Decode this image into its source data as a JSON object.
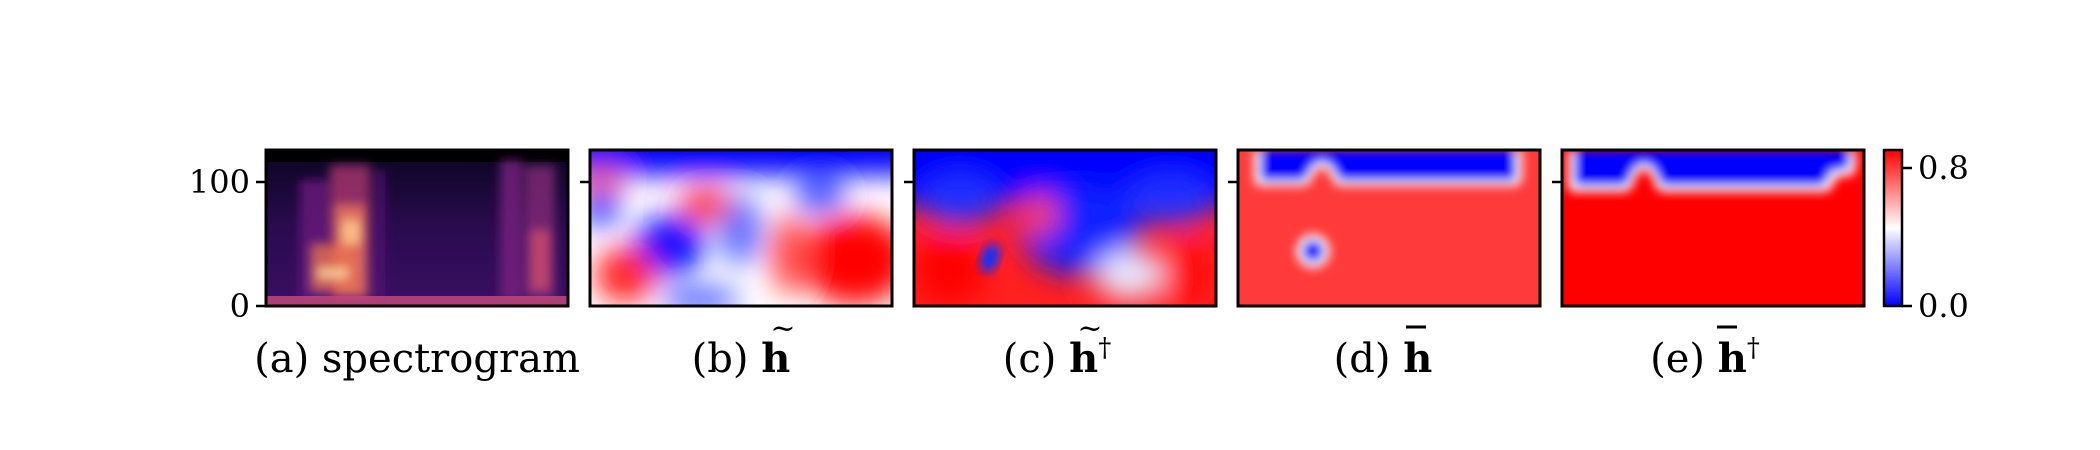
{
  "chart_data": [
    {
      "type": "heatmap",
      "panel": "a",
      "caption_prefix": "(a)",
      "caption_text": "spectrogram",
      "y_ticks": [
        {
          "value": 0,
          "label": "0"
        },
        {
          "value": 100,
          "label": "100"
        }
      ],
      "ylim": [
        0,
        128
      ],
      "colormap": "magma"
    },
    {
      "type": "heatmap",
      "panel": "b",
      "caption_prefix": "(b)",
      "caption_symbol": "h",
      "accent": "tilde",
      "superscript": "",
      "y_ticks": [
        {
          "value": 100,
          "label": ""
        }
      ],
      "ylim": [
        0,
        128
      ],
      "colormap": "bwr"
    },
    {
      "type": "heatmap",
      "panel": "c",
      "caption_prefix": "(c)",
      "caption_symbol": "h",
      "accent": "tilde",
      "superscript": "†",
      "y_ticks": [
        {
          "value": 100,
          "label": ""
        }
      ],
      "ylim": [
        0,
        128
      ],
      "colormap": "bwr"
    },
    {
      "type": "heatmap",
      "panel": "d",
      "caption_prefix": "(d)",
      "caption_symbol": "h",
      "accent": "bar",
      "superscript": "",
      "y_ticks": [
        {
          "value": 100,
          "label": ""
        }
      ],
      "ylim": [
        0,
        128
      ],
      "colormap": "bwr"
    },
    {
      "type": "heatmap",
      "panel": "e",
      "caption_prefix": "(e)",
      "caption_symbol": "h",
      "accent": "bar",
      "superscript": "†",
      "y_ticks": [
        {
          "value": 100,
          "label": ""
        }
      ],
      "ylim": [
        0,
        128
      ],
      "colormap": "bwr"
    }
  ],
  "colorbar": {
    "colormap": "bwr",
    "range": [
      0.0,
      0.8
    ],
    "ticks": [
      {
        "value": 0.8,
        "label": "0.8"
      },
      {
        "value": 0.0,
        "label": "0.0"
      }
    ]
  }
}
